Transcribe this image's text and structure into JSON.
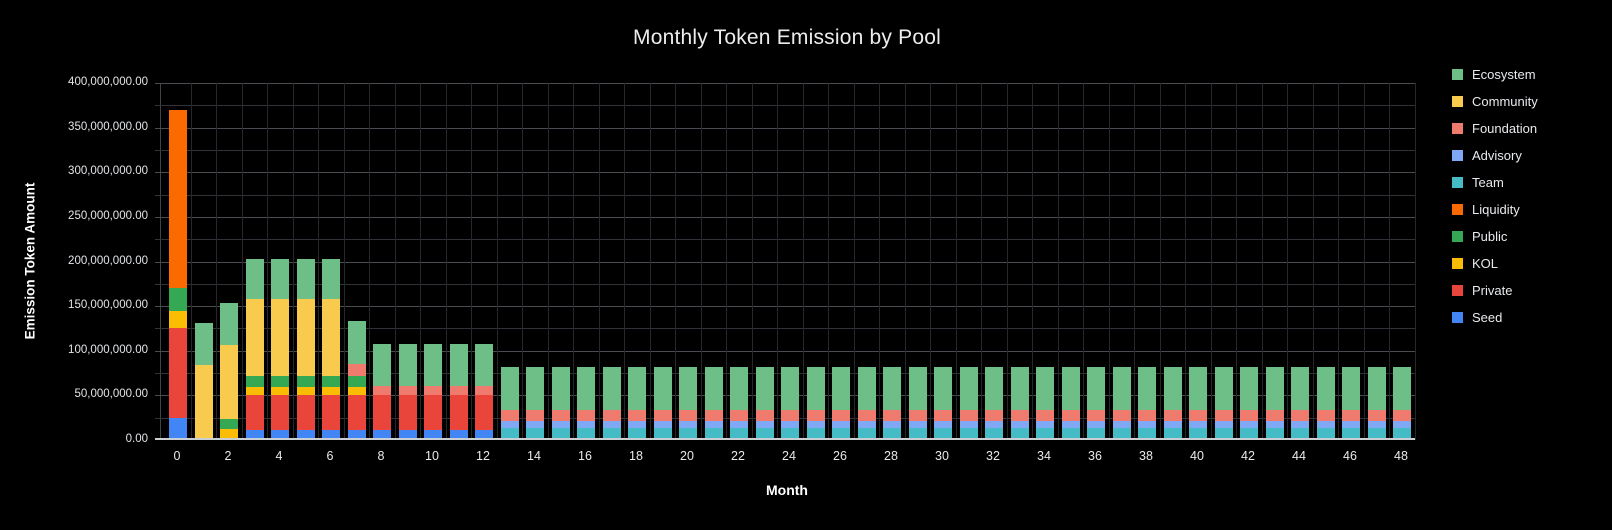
{
  "title": "Monthly Token Emission by Pool",
  "y_axis": {
    "title": "Emission Token Amount",
    "ticks": [
      "400,000,000.00",
      "350,000,000.00",
      "300,000,000.00",
      "250,000,000.00",
      "200,000,000.00",
      "150,000,000.00",
      "100,000,000.00",
      "50,000,000.00",
      "0.00"
    ]
  },
  "x_axis": {
    "title": "Month",
    "ticks": [
      "0",
      "2",
      "4",
      "6",
      "8",
      "10",
      "12",
      "14",
      "16",
      "18",
      "20",
      "22",
      "24",
      "26",
      "28",
      "30",
      "32",
      "34",
      "36",
      "38",
      "40",
      "42",
      "44",
      "46",
      "48"
    ]
  },
  "legend": {
    "position": "right",
    "items": [
      {
        "label": "Ecosystem",
        "color": "#6DBE87"
      },
      {
        "label": "Community",
        "color": "#F8CB4E"
      },
      {
        "label": "Foundation",
        "color": "#EF7B6F"
      },
      {
        "label": "Advisory",
        "color": "#7FA9F5"
      },
      {
        "label": "Team",
        "color": "#45BCC5"
      },
      {
        "label": "Liquidity",
        "color": "#FB6A00"
      },
      {
        "label": "Public",
        "color": "#34A853"
      },
      {
        "label": "KOL",
        "color": "#FBBC04"
      },
      {
        "label": "Private",
        "color": "#E9453B"
      },
      {
        "label": "Seed",
        "color": "#4285F4"
      }
    ]
  },
  "chart_data": {
    "type": "bar",
    "stacked": true,
    "title": "Monthly Token Emission by Pool",
    "xlabel": "Month",
    "ylabel": "Emission Token Amount",
    "legend_position": "right",
    "grid": true,
    "background": "#000000",
    "value_unit": "tokens",
    "value_scale": 1000000,
    "ylim_millions": [
      0,
      400
    ],
    "gridline_step_millions": {
      "major": 50,
      "minor": 25
    },
    "categories": [
      0,
      1,
      2,
      3,
      4,
      5,
      6,
      7,
      8,
      9,
      10,
      11,
      12,
      13,
      14,
      15,
      16,
      17,
      18,
      19,
      20,
      21,
      22,
      23,
      24,
      25,
      26,
      27,
      28,
      29,
      30,
      31,
      32,
      33,
      34,
      35,
      36,
      37,
      38,
      39,
      40,
      41,
      42,
      43,
      44,
      45,
      46,
      47,
      48
    ],
    "stack_order": "bottom-to-top",
    "series": [
      {
        "name": "Seed",
        "color": "#4285F4",
        "values_millions": [
          25,
          0,
          0,
          11.5,
          11.5,
          11.5,
          11.5,
          11.5,
          11.5,
          11.5,
          11.5,
          11.5,
          11.5,
          0,
          0,
          0,
          0,
          0,
          0,
          0,
          0,
          0,
          0,
          0,
          0,
          0,
          0,
          0,
          0,
          0,
          0,
          0,
          0,
          0,
          0,
          0,
          0,
          0,
          0,
          0,
          0,
          0,
          0,
          0,
          0,
          0,
          0,
          0,
          0
        ]
      },
      {
        "name": "Private",
        "color": "#E9453B",
        "values_millions": [
          100,
          0,
          0,
          38.5,
          38.5,
          38.5,
          38.5,
          38.5,
          38.5,
          38.5,
          38.5,
          38.5,
          38.5,
          0,
          0,
          0,
          0,
          0,
          0,
          0,
          0,
          0,
          0,
          0,
          0,
          0,
          0,
          0,
          0,
          0,
          0,
          0,
          0,
          0,
          0,
          0,
          0,
          0,
          0,
          0,
          0,
          0,
          0,
          0,
          0,
          0,
          0,
          0,
          0
        ]
      },
      {
        "name": "KOL",
        "color": "#FBBC04",
        "values_millions": [
          20,
          0,
          12,
          9,
          9,
          9,
          9,
          9,
          0,
          0,
          0,
          0,
          0,
          0,
          0,
          0,
          0,
          0,
          0,
          0,
          0,
          0,
          0,
          0,
          0,
          0,
          0,
          0,
          0,
          0,
          0,
          0,
          0,
          0,
          0,
          0,
          0,
          0,
          0,
          0,
          0,
          0,
          0,
          0,
          0,
          0,
          0,
          0,
          0
        ]
      },
      {
        "name": "Public",
        "color": "#34A853",
        "values_millions": [
          25,
          0,
          11,
          13,
          13,
          13,
          13,
          13,
          0,
          0,
          0,
          0,
          0,
          0,
          0,
          0,
          0,
          0,
          0,
          0,
          0,
          0,
          0,
          0,
          0,
          0,
          0,
          0,
          0,
          0,
          0,
          0,
          0,
          0,
          0,
          0,
          0,
          0,
          0,
          0,
          0,
          0,
          0,
          0,
          0,
          0,
          0,
          0,
          0
        ]
      },
      {
        "name": "Liquidity",
        "color": "#FB6A00",
        "values_millions": [
          200,
          0,
          0,
          0,
          0,
          0,
          0,
          0,
          0,
          0,
          0,
          0,
          0,
          0,
          0,
          0,
          0,
          0,
          0,
          0,
          0,
          0,
          0,
          0,
          0,
          0,
          0,
          0,
          0,
          0,
          0,
          0,
          0,
          0,
          0,
          0,
          0,
          0,
          0,
          0,
          0,
          0,
          0,
          0,
          0,
          0,
          0,
          0,
          0
        ]
      },
      {
        "name": "Team",
        "color": "#45BCC5",
        "values_millions": [
          0,
          0,
          0,
          0,
          0,
          0,
          0,
          0,
          0,
          0,
          0,
          0,
          0,
          13.5,
          13.5,
          13.5,
          13.5,
          13.5,
          13.5,
          13.5,
          13.5,
          13.5,
          13.5,
          13.5,
          13.5,
          13.5,
          13.5,
          13.5,
          13.5,
          13.5,
          13.5,
          13.5,
          13.5,
          13.5,
          13.5,
          13.5,
          13.5,
          13.5,
          13.5,
          13.5,
          13.5,
          13.5,
          13.5,
          13.5,
          13.5,
          13.5,
          13.5,
          13.5,
          13.5
        ]
      },
      {
        "name": "Advisory",
        "color": "#7FA9F5",
        "values_millions": [
          0,
          0,
          0,
          0,
          0,
          0,
          0,
          0,
          0,
          0,
          0,
          0,
          0,
          8,
          8,
          8,
          8,
          8,
          8,
          8,
          8,
          8,
          8,
          8,
          8,
          8,
          8,
          8,
          8,
          8,
          8,
          8,
          8,
          8,
          8,
          8,
          8,
          8,
          8,
          8,
          8,
          8,
          8,
          8,
          8,
          8,
          8,
          8,
          8
        ]
      },
      {
        "name": "Foundation",
        "color": "#EF7B6F",
        "values_millions": [
          0,
          0,
          0,
          0,
          0,
          0,
          0,
          13,
          11,
          11,
          11,
          11,
          11,
          12,
          12,
          12,
          12,
          12,
          12,
          12,
          12,
          12,
          12,
          12,
          12,
          12,
          12,
          12,
          12,
          12,
          12,
          12,
          12,
          12,
          12,
          12,
          12,
          12,
          12,
          12,
          12,
          12,
          12,
          12,
          12,
          12,
          12,
          12,
          12
        ]
      },
      {
        "name": "Community",
        "color": "#F8CB4E",
        "values_millions": [
          0,
          84,
          83,
          86,
          86,
          86,
          86,
          0,
          0,
          0,
          0,
          0,
          0,
          0,
          0,
          0,
          0,
          0,
          0,
          0,
          0,
          0,
          0,
          0,
          0,
          0,
          0,
          0,
          0,
          0,
          0,
          0,
          0,
          0,
          0,
          0,
          0,
          0,
          0,
          0,
          0,
          0,
          0,
          0,
          0,
          0,
          0,
          0,
          0
        ]
      },
      {
        "name": "Ecosystem",
        "color": "#6DBE87",
        "values_millions": [
          0,
          47,
          48,
          45,
          45,
          45,
          45,
          48,
          47,
          47,
          47,
          47,
          47,
          48,
          48,
          48,
          48,
          48,
          48,
          48,
          48,
          48,
          48,
          48,
          48,
          48,
          48,
          48,
          48,
          48,
          48,
          48,
          48,
          48,
          48,
          48,
          48,
          48,
          48,
          48,
          48,
          48,
          48,
          48,
          48,
          48,
          48,
          48,
          48
        ]
      }
    ]
  }
}
